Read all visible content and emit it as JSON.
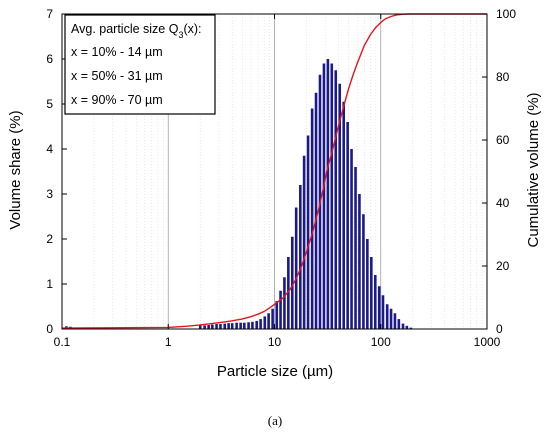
{
  "chart_data": {
    "type": "bar",
    "xlabel": "Particle size (µm)",
    "ylabel": "Volume share (%)",
    "y2label": "Cumulative volume (%)",
    "xscale": "log",
    "xlim": [
      0.1,
      1000
    ],
    "ylim": [
      0,
      7
    ],
    "y2lim": [
      0,
      100
    ],
    "x_ticks": [
      "0.1",
      "1",
      "10",
      "100",
      "1000"
    ],
    "y_ticks": [
      "0",
      "1",
      "2",
      "3",
      "4",
      "5",
      "6",
      "7"
    ],
    "y2_ticks": [
      "0",
      "20",
      "40",
      "60",
      "80",
      "100"
    ],
    "grid": "vertical-major-and-minor",
    "legend": {
      "placement": "top-left",
      "title_text": "Avg. particle size Q",
      "title_sub": "3",
      "title_suffix": "(x):",
      "lines": [
        "x = 10% - 14 µm",
        "x = 50% - 31 µm",
        "x = 90% - 70 µm"
      ]
    },
    "series": [
      {
        "name": "Volume share",
        "kind": "bar",
        "color": "#1a1a8c",
        "axis": "left",
        "x": [
          0.11,
          0.12,
          2.0,
          2.2,
          2.4,
          2.6,
          2.85,
          3.1,
          3.4,
          3.7,
          4.0,
          4.4,
          4.8,
          5.2,
          5.7,
          6.2,
          6.8,
          7.4,
          8.1,
          8.8,
          9.6,
          10.5,
          11.4,
          12.4,
          13.5,
          14.7,
          16.0,
          17.5,
          19.0,
          20.7,
          22.6,
          24.6,
          26.8,
          29.2,
          31.8,
          34.6,
          37.7,
          41.1,
          44.8,
          48.8,
          53.1,
          57.9,
          63.0,
          68.7,
          74.8,
          81.5,
          88.8,
          96.7,
          105,
          115,
          125,
          136,
          148,
          162,
          176,
          192,
          209
        ],
        "values": [
          0.06,
          0.05,
          0.08,
          0.08,
          0.09,
          0.1,
          0.11,
          0.11,
          0.12,
          0.13,
          0.13,
          0.14,
          0.14,
          0.14,
          0.15,
          0.16,
          0.18,
          0.22,
          0.28,
          0.35,
          0.45,
          0.62,
          0.85,
          1.15,
          1.6,
          2.05,
          2.7,
          3.2,
          3.85,
          4.3,
          4.9,
          5.25,
          5.65,
          5.9,
          6.0,
          5.9,
          5.75,
          5.45,
          5.05,
          4.6,
          4.0,
          3.6,
          3.0,
          2.55,
          2.0,
          1.6,
          1.2,
          0.95,
          0.75,
          0.55,
          0.45,
          0.35,
          0.22,
          0.12,
          0.07,
          0.03,
          0.01
        ]
      },
      {
        "name": "Cumulative volume",
        "kind": "line",
        "color": "#e8141c",
        "axis": "right",
        "x": [
          0.1,
          1,
          1.5,
          2,
          3,
          4,
          5,
          6,
          7,
          8,
          9,
          10,
          12,
          14,
          16,
          18,
          20,
          23,
          26,
          29,
          31,
          35,
          40,
          45,
          50,
          55,
          60,
          70,
          80,
          90,
          100,
          110,
          125,
          140,
          160,
          180,
          200,
          1000
        ],
        "values": [
          0.3,
          0.5,
          0.9,
          1.3,
          2.0,
          2.6,
          3.2,
          3.9,
          4.7,
          5.6,
          6.7,
          7.8,
          9.8,
          12.5,
          16,
          20,
          24.5,
          31,
          38,
          45,
          50,
          56.5,
          64.5,
          71,
          76.5,
          80.8,
          84.3,
          90,
          93.5,
          95.8,
          97.3,
          98.4,
          99.2,
          99.7,
          99.9,
          100,
          100,
          100
        ]
      }
    ]
  },
  "caption": "(a)"
}
